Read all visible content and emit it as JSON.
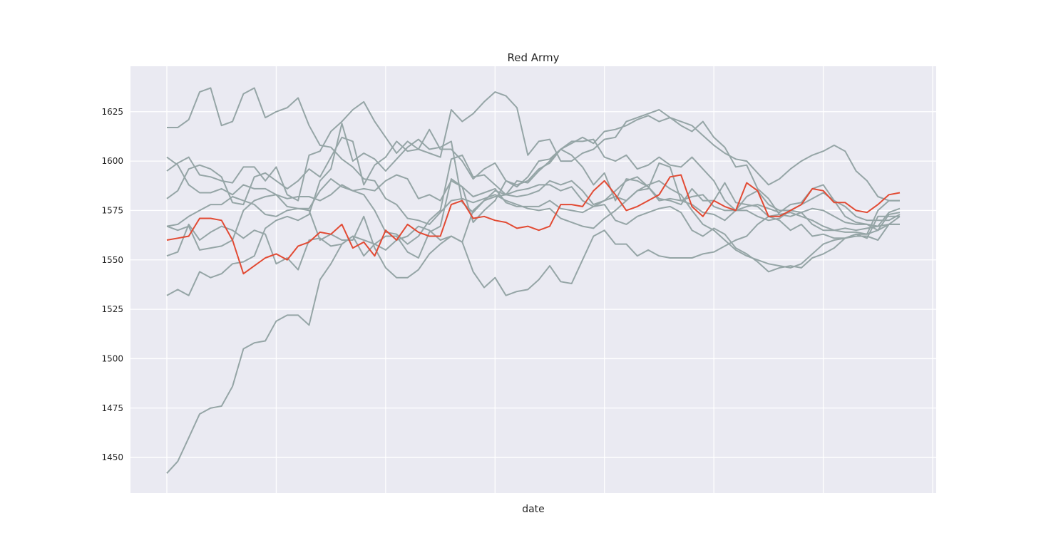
{
  "chart_data": {
    "type": "line",
    "title": "Red Army",
    "xlabel": "date",
    "ylabel": "",
    "x_ticks_labeled": false,
    "ylim": [
      1432,
      1648
    ],
    "yticks": [
      1450,
      1475,
      1500,
      1525,
      1550,
      1575,
      1600,
      1625
    ],
    "grid": true,
    "highlight_color": "#e24a33",
    "other_color": "#95a5a6",
    "background_color": "#eaeaf2",
    "x": [
      0,
      1,
      2,
      3,
      4,
      5,
      6,
      7,
      8,
      9,
      10,
      11,
      12,
      13,
      14,
      15,
      16,
      17,
      18,
      19,
      20,
      21,
      22,
      23,
      24,
      25,
      26,
      27,
      28,
      29,
      30,
      31,
      32,
      33,
      34,
      35,
      36,
      37,
      38,
      39,
      40,
      41,
      42,
      43,
      44,
      45,
      46,
      47,
      48,
      49,
      50,
      51,
      52,
      53,
      54,
      55,
      56,
      57,
      58,
      59,
      60,
      61,
      62,
      63,
      64,
      65,
      66,
      67
    ],
    "series": [
      {
        "highlight": true,
        "values": [
          1560,
          1561,
          1562,
          1571,
          1571,
          1570,
          1560,
          1543,
          1547,
          1551,
          1553,
          1550,
          1557,
          1559,
          1564,
          1563,
          1568,
          1556,
          1559,
          1552,
          1565,
          1560,
          1568,
          1564,
          1562,
          1562,
          1578,
          1580,
          1571,
          1572,
          1570,
          1569,
          1566,
          1567,
          1565,
          1567,
          1578,
          1578,
          1577,
          1585,
          1590,
          1583,
          1575,
          1577,
          1580,
          1583,
          1592,
          1593,
          1577,
          1572,
          1580,
          1577,
          1575,
          1589,
          1585,
          1572,
          1572,
          1575,
          1578,
          1586,
          1585,
          1579,
          1579,
          1575,
          1574,
          1578,
          1583,
          1584
        ]
      },
      {
        "highlight": false,
        "values": [
          1442,
          1448,
          1460,
          1472,
          1475,
          1476,
          1486,
          1505,
          1508,
          1509,
          1519,
          1522,
          1522,
          1517,
          1540,
          1548,
          1558,
          1562,
          1560,
          1558,
          1555,
          1560,
          1562,
          1567,
          1565,
          1560,
          1562,
          1559,
          1544,
          1536,
          1541,
          1532,
          1534,
          1535,
          1540,
          1547,
          1539,
          1538,
          1550,
          1562,
          1565,
          1558,
          1558,
          1552,
          1555,
          1552,
          1551,
          1551,
          1551,
          1553,
          1554,
          1557,
          1560,
          1562,
          1568,
          1572,
          1573,
          1572,
          1574,
          1568,
          1565,
          1565,
          1566,
          1565,
          1566,
          1567,
          1568,
          1568
        ]
      },
      {
        "highlight": false,
        "values": [
          1617,
          1617,
          1621,
          1635,
          1637,
          1618,
          1620,
          1634,
          1637,
          1622,
          1625,
          1627,
          1632,
          1618,
          1608,
          1607,
          1601,
          1597,
          1591,
          1590,
          1581,
          1578,
          1571,
          1570,
          1568,
          1574,
          1580,
          1581,
          1579,
          1581,
          1583,
          1580,
          1578,
          1576,
          1575,
          1576,
          1571,
          1569,
          1567,
          1566,
          1571,
          1575,
          1580,
          1585,
          1588,
          1590,
          1586,
          1583,
          1575,
          1568,
          1565,
          1560,
          1555,
          1552,
          1550,
          1548,
          1547,
          1546,
          1548,
          1553,
          1558,
          1560,
          1561,
          1562,
          1562,
          1560,
          1568,
          1572
        ]
      },
      {
        "highlight": false,
        "values": [
          1532,
          1535,
          1532,
          1544,
          1541,
          1543,
          1548,
          1549,
          1552,
          1566,
          1570,
          1572,
          1570,
          1573,
          1590,
          1596,
          1619,
          1600,
          1604,
          1601,
          1595,
          1601,
          1607,
          1611,
          1606,
          1607,
          1610,
          1579,
          1574,
          1580,
          1585,
          1583,
          1582,
          1583,
          1585,
          1590,
          1588,
          1590,
          1585,
          1578,
          1580,
          1585,
          1590,
          1592,
          1587,
          1580,
          1581,
          1580,
          1578,
          1574,
          1573,
          1570,
          1575,
          1582,
          1585,
          1578,
          1575,
          1575,
          1574,
          1576,
          1575,
          1572,
          1569,
          1568,
          1568,
          1567,
          1574,
          1576
        ]
      },
      {
        "highlight": false,
        "values": [
          1602,
          1598,
          1588,
          1584,
          1584,
          1586,
          1583,
          1588,
          1586,
          1586,
          1583,
          1577,
          1576,
          1576,
          1585,
          1591,
          1587,
          1585,
          1583,
          1575,
          1564,
          1563,
          1558,
          1562,
          1570,
          1575,
          1601,
          1603,
          1592,
          1593,
          1588,
          1583,
          1590,
          1589,
          1595,
          1600,
          1606,
          1610,
          1610,
          1611,
          1602,
          1600,
          1603,
          1596,
          1598,
          1602,
          1598,
          1597,
          1602,
          1596,
          1590,
          1580,
          1575,
          1575,
          1572,
          1570,
          1571,
          1575,
          1578,
          1581,
          1584,
          1580,
          1572,
          1569,
          1568,
          1565,
          1573,
          1574
        ]
      },
      {
        "highlight": false,
        "values": [
          1567,
          1565,
          1567,
          1555,
          1556,
          1557,
          1560,
          1575,
          1580,
          1582,
          1583,
          1581,
          1582,
          1582,
          1580,
          1583,
          1588,
          1585,
          1586,
          1585,
          1590,
          1593,
          1591,
          1581,
          1583,
          1580,
          1590,
          1587,
          1582,
          1584,
          1586,
          1579,
          1577,
          1577,
          1577,
          1580,
          1576,
          1575,
          1574,
          1577,
          1580,
          1582,
          1580,
          1585,
          1586,
          1599,
          1597,
          1580,
          1582,
          1583,
          1577,
          1575,
          1575,
          1577,
          1578,
          1576,
          1574,
          1578,
          1579,
          1586,
          1588,
          1580,
          1577,
          1572,
          1570,
          1570,
          1570,
          1573
        ]
      },
      {
        "highlight": false,
        "values": [
          1567,
          1568,
          1572,
          1575,
          1578,
          1578,
          1582,
          1580,
          1578,
          1573,
          1572,
          1575,
          1576,
          1575,
          1560,
          1563,
          1560,
          1560,
          1572,
          1556,
          1546,
          1541,
          1541,
          1545,
          1553,
          1558,
          1562,
          1559,
          1575,
          1580,
          1582,
          1583,
          1585,
          1586,
          1588,
          1588,
          1585,
          1587,
          1580,
          1577,
          1578,
          1570,
          1568,
          1572,
          1574,
          1576,
          1577,
          1574,
          1565,
          1562,
          1566,
          1563,
          1556,
          1553,
          1549,
          1544,
          1546,
          1547,
          1546,
          1551,
          1553,
          1556,
          1561,
          1563,
          1563,
          1565,
          1568,
          1568
        ]
      },
      {
        "highlight": false,
        "values": [
          1552,
          1554,
          1568,
          1560,
          1564,
          1567,
          1565,
          1561,
          1565,
          1563,
          1548,
          1551,
          1545,
          1560,
          1561,
          1557,
          1558,
          1562,
          1552,
          1558,
          1562,
          1562,
          1554,
          1551,
          1564,
          1567,
          1591,
          1587,
          1569,
          1575,
          1580,
          1590,
          1587,
          1592,
          1600,
          1601,
          1606,
          1603,
          1597,
          1588,
          1594,
          1580,
          1591,
          1590,
          1587,
          1581,
          1580,
          1578,
          1586,
          1580,
          1580,
          1589,
          1579,
          1578,
          1577,
          1572,
          1570,
          1565,
          1568,
          1562,
          1563,
          1561,
          1561,
          1563,
          1561,
          1572,
          1572,
          1572
        ]
      },
      {
        "highlight": false,
        "values": [
          1581,
          1585,
          1596,
          1598,
          1596,
          1592,
          1579,
          1578,
          1592,
          1594,
          1590,
          1586,
          1590,
          1596,
          1592,
          1602,
          1612,
          1610,
          1588,
          1598,
          1602,
          1610,
          1605,
          1606,
          1604,
          1602,
          1626,
          1620,
          1624,
          1630,
          1635,
          1633,
          1627,
          1603,
          1610,
          1611,
          1600,
          1600,
          1604,
          1606,
          1611,
          1612,
          1620,
          1622,
          1624,
          1626,
          1622,
          1620,
          1618,
          1613,
          1608,
          1604,
          1601,
          1600,
          1594,
          1588,
          1591,
          1596,
          1600,
          1603,
          1605,
          1608,
          1605,
          1595,
          1590,
          1582,
          1580,
          1580
        ]
      },
      {
        "highlight": false,
        "values": [
          1595,
          1599,
          1602,
          1593,
          1592,
          1590,
          1589,
          1597,
          1597,
          1590,
          1597,
          1583,
          1580,
          1603,
          1605,
          1615,
          1620,
          1626,
          1630,
          1620,
          1612,
          1604,
          1610,
          1606,
          1616,
          1606,
          1606,
          1600,
          1591,
          1596,
          1599,
          1590,
          1588,
          1590,
          1596,
          1599,
          1606,
          1609,
          1612,
          1609,
          1615,
          1616,
          1618,
          1621,
          1623,
          1620,
          1622,
          1618,
          1615,
          1620,
          1612,
          1607,
          1597,
          1598,
          1586,
          1581,
          1573,
          1574,
          1572,
          1570,
          1567,
          1565,
          1564,
          1564,
          1563,
          1575,
          1580,
          1580
        ]
      }
    ]
  }
}
